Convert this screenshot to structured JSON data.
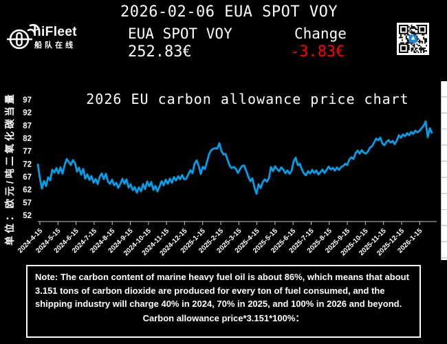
{
  "header": {
    "logo": {
      "brand": "hiFleet",
      "brand_cn": "船队在线"
    },
    "title": "2026-02-06 EUA SPOT VOY",
    "price_label": "EUA SPOT VOY",
    "price_value": "252.83€",
    "change_label": "Change",
    "change_value": "-3.83€",
    "change_color": "#ff0000",
    "qr_icon": "qr-code"
  },
  "chart_data": {
    "type": "line",
    "title": "2026 EU carbon allowance price chart",
    "ylabel": "单位：欧元/吨二氧化碳当量",
    "xlabel": "",
    "ylim": [
      52,
      97
    ],
    "yticks": [
      97,
      92,
      87,
      82,
      77,
      72,
      67,
      62,
      57,
      52
    ],
    "xticks": [
      "2024-4-15",
      "2024-5-15",
      "2024-6-15",
      "2024-7-15",
      "2024-8-15",
      "2024-9-15",
      "2024-10-15",
      "2024-11-15",
      "2024-12-15",
      "2025-1-15",
      "2025-2-15",
      "2025-3-15",
      "2025-4-15",
      "2025-5-15",
      "2025-6-15",
      "2025-7-15",
      "2025-8-15",
      "2025-9-15",
      "2025-10-15",
      "2025-11-15",
      "2025-12-15",
      "2026-1-15"
    ],
    "grid": false,
    "legend_position": "none",
    "line_color": "#00a0e9",
    "axis_color": "#c8c8c8",
    "series": [
      {
        "name": "EUA SPOT VOY",
        "values": [
          71.8,
          66.5,
          62.4,
          65.4,
          63.4,
          66.8,
          65.6,
          69.8,
          68.7,
          70.4,
          68.3,
          70.7,
          68.2,
          71.6,
          73.9,
          72.9,
          71.6,
          73.5,
          72.4,
          69.0,
          70.6,
          67.8,
          70.1,
          66.3,
          68.0,
          65.8,
          67.3,
          64.7,
          66.2,
          64.2,
          67.0,
          68.3,
          66.1,
          68.2,
          65.1,
          64.3,
          65.9,
          63.7,
          64.7,
          62.7,
          64.3,
          66.2,
          64.3,
          66.0,
          62.8,
          64.1,
          61.8,
          63.0,
          60.8,
          62.9,
          61.3,
          64.2,
          62.2,
          65.2,
          63.3,
          65.0,
          61.9,
          63.5,
          61.3,
          63.3,
          65.3,
          63.7,
          65.9,
          64.3,
          66.3,
          64.7,
          66.9,
          65.6,
          67.2,
          66.1,
          67.7,
          66.0,
          66.3,
          68.1,
          69.6,
          68.4,
          72.2,
          73.4,
          71.2,
          68.1,
          70.9,
          70.0,
          72.8,
          75.8,
          77.3,
          77.9,
          78.2,
          78.0,
          80.1,
          77.1,
          75.7,
          75.9,
          73.6,
          71.3,
          70.4,
          70.9,
          70.1,
          68.5,
          70.0,
          71.2,
          71.4,
          69.4,
          67.1,
          65.3,
          66.4,
          62.9,
          60.4,
          64.1,
          62.6,
          64.9,
          66.0,
          65.1,
          66.4,
          70.8,
          69.2,
          71.1,
          70.0,
          69.2,
          70.7,
          69.8,
          68.4,
          69.5,
          68.2,
          69.3,
          73.0,
          74.5,
          71.5,
          72.1,
          69.9,
          68.3,
          67.6,
          69.2,
          68.3,
          69.7,
          68.5,
          69.5,
          67.9,
          68.8,
          69.8,
          68.5,
          69.8,
          71.0,
          69.8,
          70.5,
          69.4,
          70.7,
          69.7,
          70.8,
          71.2,
          72.1,
          71.6,
          73.8,
          74.6,
          73.9,
          76.2,
          77.2,
          76.0,
          77.4,
          76.4,
          76.0,
          76.9,
          78.4,
          78.9,
          80.4,
          81.9,
          81.2,
          82.3,
          80.0,
          79.3,
          80.6,
          81.3,
          80.3,
          81.0,
          79.7,
          81.1,
          83.2,
          82.2,
          83.5,
          82.8,
          84.0,
          83.2,
          84.5,
          83.7,
          85.0,
          84.3,
          84.9,
          85.9,
          86.9,
          88.6,
          82.4,
          85.9,
          84.2
        ]
      }
    ]
  },
  "note": {
    "paragraph": "Note: The carbon content of marine heavy fuel oil is about 86%, which means that about 3.151 tons of carbon dioxide are produced for every ton of fuel consumed, and the shipping industry will charge 40% in 2024, 70% in 2025, and 100% in 2026 and beyond.",
    "formula": "Carbon allowance price*3.151*100%："
  }
}
